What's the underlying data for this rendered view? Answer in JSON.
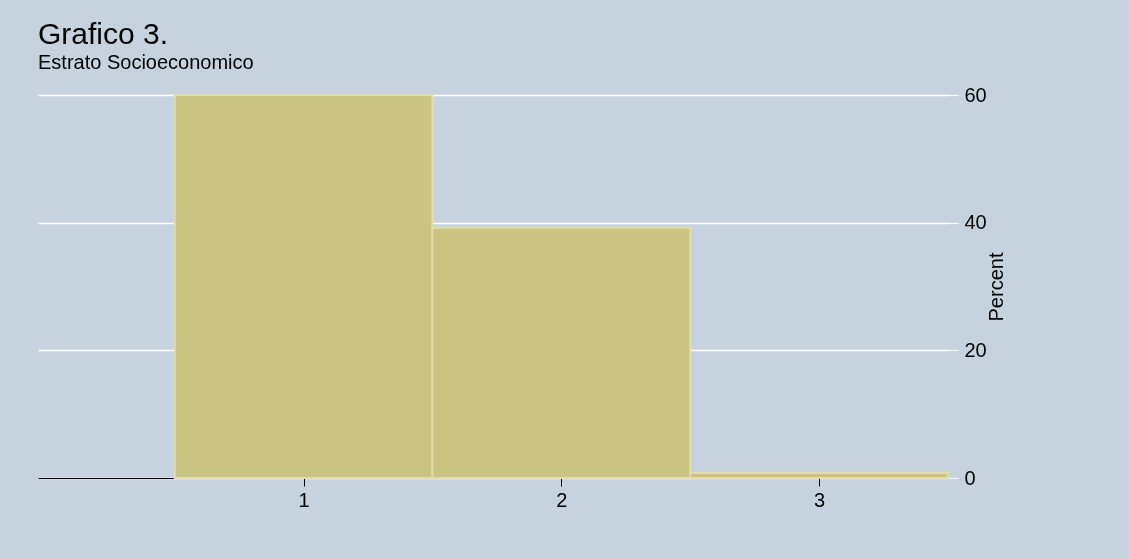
{
  "chart_data": {
    "type": "histogram",
    "title": "Grafico 3.",
    "subtitle": "Estrato Socioeconomico",
    "ylabel": "Percent",
    "bins": [
      0.5,
      1.5,
      2.5,
      3.5
    ],
    "values": [
      60,
      39.2,
      0.8
    ],
    "color": "#cbc382",
    "xlim": [
      -0.03,
      3.5
    ],
    "xticks": [
      1,
      2,
      3
    ],
    "ylim": [
      0,
      60
    ],
    "yticks": [
      0,
      20,
      40,
      60
    ],
    "grid": "y"
  }
}
